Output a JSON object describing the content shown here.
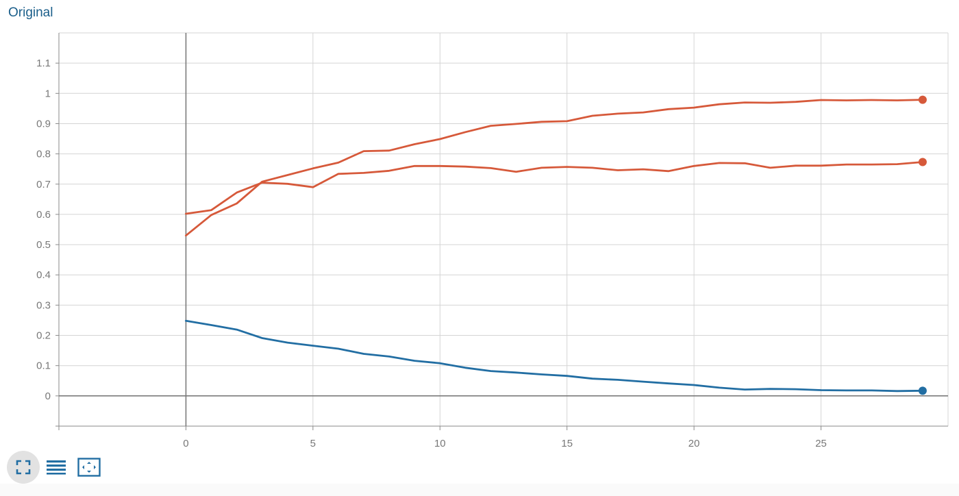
{
  "title": "Original",
  "colors": {
    "orange": "#d6593a",
    "blue": "#226ea3",
    "grid": "#d4d4d4",
    "axis": "#8a8a8a"
  },
  "toolbar": [
    {
      "name": "expand-icon",
      "active": true
    },
    {
      "name": "data-table-icon",
      "active": false
    },
    {
      "name": "fit-domain-icon",
      "active": false
    }
  ],
  "chart_data": {
    "type": "line",
    "xlim": [
      -5,
      30
    ],
    "ylim": [
      -0.1,
      1.2
    ],
    "xticks": [
      0,
      5,
      10,
      15,
      20,
      25
    ],
    "yticks": [
      0,
      0.1,
      0.2,
      0.3,
      0.4,
      0.5,
      0.6,
      0.7,
      0.8,
      0.9,
      1,
      1.1
    ],
    "grid": true,
    "x": [
      0,
      1,
      2,
      3,
      4,
      5,
      6,
      7,
      8,
      9,
      10,
      11,
      12,
      13,
      14,
      15,
      16,
      17,
      18,
      19,
      20,
      21,
      22,
      23,
      24,
      25,
      26,
      27,
      28,
      29
    ],
    "series": [
      {
        "color": "#d6593a",
        "values": [
          0.53,
          0.598,
          0.636,
          0.708,
          0.73,
          0.752,
          0.771,
          0.809,
          0.811,
          0.832,
          0.849,
          0.872,
          0.893,
          0.899,
          0.906,
          0.908,
          0.926,
          0.933,
          0.937,
          0.948,
          0.953,
          0.964,
          0.97,
          0.969,
          0.972,
          0.978,
          0.977,
          0.978,
          0.977,
          0.979
        ]
      },
      {
        "color": "#d6593a",
        "values": [
          0.602,
          0.614,
          0.672,
          0.705,
          0.701,
          0.69,
          0.734,
          0.737,
          0.744,
          0.76,
          0.76,
          0.758,
          0.753,
          0.741,
          0.754,
          0.757,
          0.754,
          0.746,
          0.749,
          0.743,
          0.76,
          0.77,
          0.769,
          0.754,
          0.761,
          0.761,
          0.765,
          0.765,
          0.766,
          0.773
        ]
      },
      {
        "color": "#226ea3",
        "values": [
          0.248,
          0.234,
          0.219,
          0.191,
          0.176,
          0.166,
          0.156,
          0.139,
          0.13,
          0.116,
          0.108,
          0.093,
          0.082,
          0.077,
          0.071,
          0.066,
          0.057,
          0.053,
          0.047,
          0.041,
          0.036,
          0.027,
          0.021,
          0.023,
          0.022,
          0.019,
          0.018,
          0.018,
          0.016,
          0.017
        ]
      }
    ]
  }
}
